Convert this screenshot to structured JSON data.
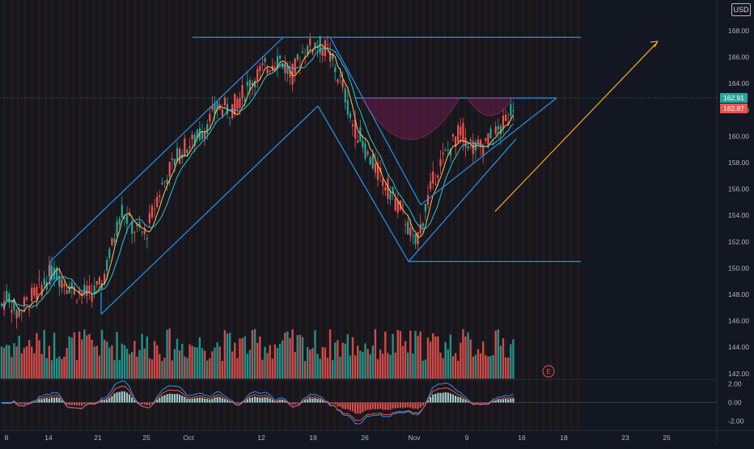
{
  "currency_label": "USD",
  "earnings_marker": "E",
  "colors": {
    "background": "#131722",
    "up": "#26a69a",
    "down": "#ef5350",
    "channel": "#2196f3",
    "ma_fast": "#f7c65c",
    "ma_slow": "#26c6da",
    "arrow": "#ffa726",
    "cup_fill": "#6a1b4d",
    "last_price": "#26a69a",
    "prev_price": "#ef5350",
    "grid_bg_stripe": "#2a1a12"
  },
  "price_badges": [
    "162.91",
    "162.87"
  ],
  "chart_data": [
    {
      "type": "candlestick",
      "title": "",
      "xlabel": "",
      "ylabel": "",
      "x_ticks": [
        "8",
        "14",
        "21",
        "25",
        "Oct",
        "12",
        "19",
        "26",
        "Nov",
        "9",
        "16",
        "18",
        "23",
        "25"
      ],
      "y_ticks": [
        "168.00",
        "166.00",
        "164.00",
        "162.00",
        "160.00",
        "158.00",
        "156.00",
        "154.00",
        "152.00",
        "150.00",
        "148.00",
        "146.00",
        "144.00",
        "142.00"
      ],
      "ylim": [
        141,
        169.5
      ],
      "last_price": 162.91,
      "prev_price": 162.87,
      "drawings": {
        "resistance_top": 167.5,
        "support_bottom": 150.5,
        "neckline": 162.9,
        "projection_arrow": "up-right"
      }
    },
    {
      "type": "line",
      "title": "",
      "y_ticks": [
        "2.00",
        "0.00",
        "-2.00"
      ],
      "ylim": [
        -2.6,
        2.6
      ]
    }
  ]
}
